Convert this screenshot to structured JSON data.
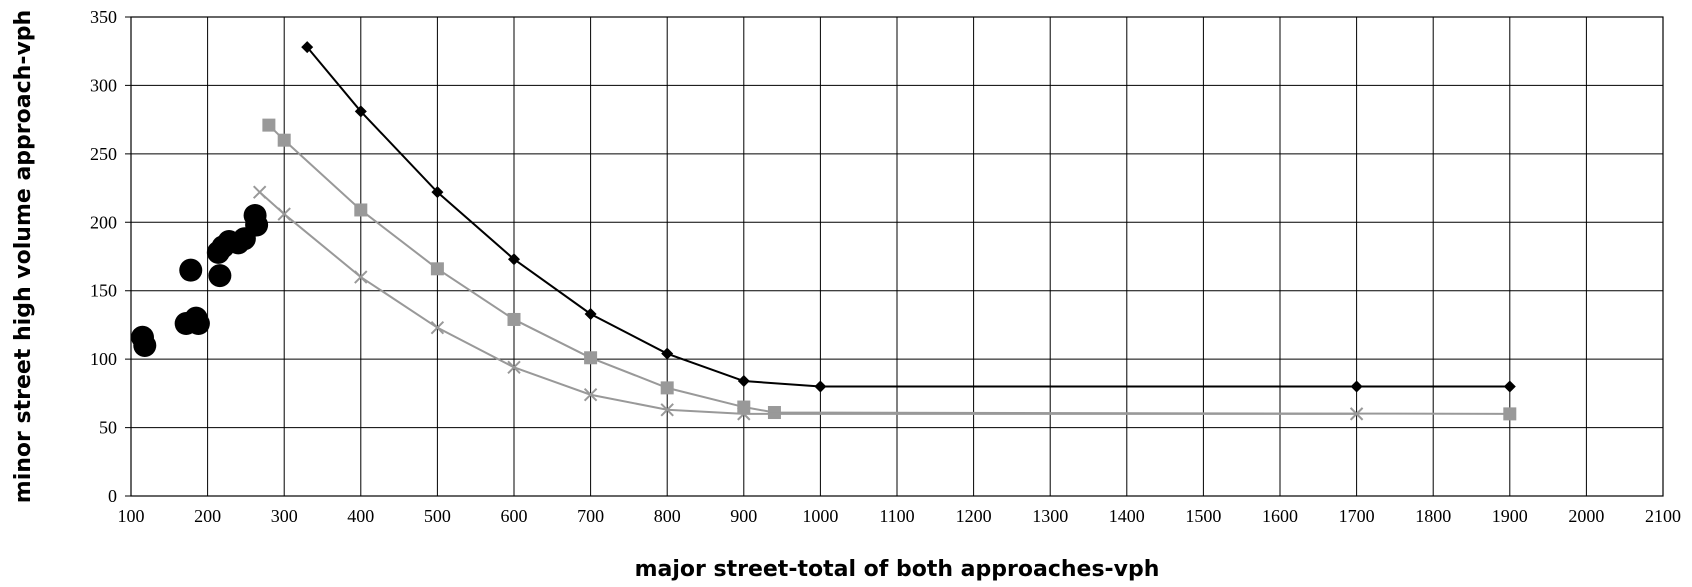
{
  "chart_data": {
    "type": "scatter",
    "title": "",
    "xlabel": "major street-total of both approaches-vph",
    "ylabel": "minor street high volume approach-vph",
    "xlim": [
      100,
      2100
    ],
    "ylim": [
      0,
      350
    ],
    "x_ticks": [
      100,
      200,
      300,
      400,
      500,
      600,
      700,
      800,
      900,
      1000,
      1100,
      1200,
      1300,
      1400,
      1500,
      1600,
      1700,
      1800,
      1900,
      2000,
      2100
    ],
    "y_ticks": [
      0,
      50,
      100,
      150,
      200,
      250,
      300,
      350
    ],
    "grid": true,
    "legend": "none",
    "series": [
      {
        "kind": "line",
        "marker": "diamond",
        "color": "#000000",
        "x": [
          330,
          400,
          500,
          600,
          700,
          800,
          900,
          1000,
          1700,
          1900
        ],
        "y": [
          328,
          281,
          222,
          173,
          133,
          104,
          84,
          80,
          80,
          80
        ]
      },
      {
        "kind": "line",
        "marker": "square",
        "color": "#999999",
        "x": [
          280,
          300,
          400,
          500,
          600,
          700,
          800,
          900,
          940,
          1900
        ],
        "y": [
          271,
          260,
          209,
          166,
          129,
          101,
          79,
          65,
          61,
          60
        ]
      },
      {
        "kind": "line",
        "marker": "x",
        "color": "#999999",
        "x": [
          268,
          300,
          400,
          500,
          600,
          700,
          800,
          900,
          1700
        ],
        "y": [
          222,
          206,
          160,
          123,
          94,
          74,
          63,
          60,
          60
        ]
      },
      {
        "kind": "scatter",
        "marker": "circle",
        "color": "#000000",
        "x": [
          115,
          118,
          172,
          178,
          185,
          188,
          214,
          216,
          220,
          228,
          240,
          248,
          262,
          264
        ],
        "y": [
          116,
          110,
          126,
          165,
          130,
          126,
          178,
          161,
          182,
          186,
          185,
          188,
          205,
          198
        ]
      }
    ]
  }
}
